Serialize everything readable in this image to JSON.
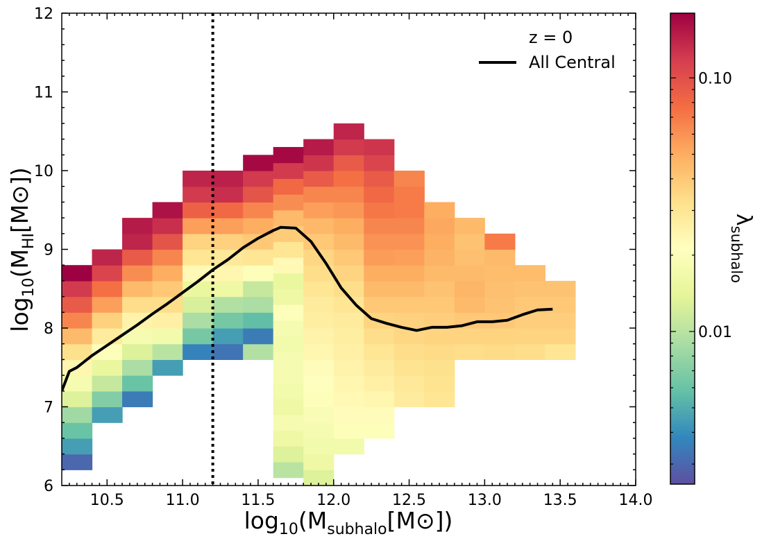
{
  "chart_data": {
    "type": "heatmap",
    "x_range": [
      10.2,
      14.0
    ],
    "y_range": [
      6.0,
      12.0
    ],
    "x_ticks": [
      "10.5",
      "11.0",
      "11.5",
      "12.0",
      "12.5",
      "13.0",
      "13.5",
      "14.0"
    ],
    "x_tick_values": [
      10.5,
      11.0,
      11.5,
      12.0,
      12.5,
      13.0,
      13.5,
      14.0
    ],
    "y_ticks": [
      "6",
      "7",
      "8",
      "9",
      "10",
      "11",
      "12"
    ],
    "y_tick_values": [
      6,
      7,
      8,
      9,
      10,
      11,
      12
    ],
    "xlabel": {
      "base": "log",
      "sub1": "10",
      "mid": "(M",
      "sub2": "subhalo",
      "end": "[M⊙])"
    },
    "ylabel": {
      "base": "log",
      "sub1": "10",
      "mid": "(M",
      "sub2": "HI",
      "end": "[M⊙])"
    },
    "legend": {
      "title": "z = 0",
      "line_label": "All Central",
      "placement": "top-right"
    },
    "colorbar": {
      "label_base": "λ",
      "label_sub": "subhalo",
      "scale": "log",
      "range": [
        0.0025,
        0.18
      ],
      "ticks": [
        "0.10",
        "0.01"
      ],
      "tick_values": [
        0.1,
        0.01
      ]
    },
    "cutoff_line": {
      "x": 11.2,
      "style": "dotted"
    },
    "grid": {
      "x_start": 10.2,
      "dx": 0.2,
      "y_start": 6.0,
      "dy": 0.2
    },
    "heatmap_columns": [
      {
        "x": 10.2,
        "y0": 6.2,
        "values": [
          0.003,
          0.0045,
          0.006,
          0.0085,
          0.013,
          0.018,
          0.024,
          0.032,
          0.045,
          0.065,
          0.09,
          0.12,
          0.18
        ]
      },
      {
        "x": 10.4,
        "y0": 6.8,
        "values": [
          0.0045,
          0.007,
          0.011,
          0.015,
          0.02,
          0.028,
          0.037,
          0.055,
          0.075,
          0.11,
          0.14
        ]
      },
      {
        "x": 10.6,
        "y0": 7.0,
        "values": [
          0.0035,
          0.006,
          0.009,
          0.013,
          0.018,
          0.025,
          0.033,
          0.045,
          0.062,
          0.09,
          0.14,
          0.15
        ]
      },
      {
        "x": 10.8,
        "y0": 7.4,
        "values": [
          0.0045,
          0.01,
          0.017,
          0.026,
          0.033,
          0.04,
          0.05,
          0.065,
          0.095,
          0.13,
          0.16
        ]
      },
      {
        "x": 11.0,
        "y0": 7.6,
        "values": [
          0.0037,
          0.0065,
          0.009,
          0.0125,
          0.015,
          0.023,
          0.03,
          0.036,
          0.055,
          0.085,
          0.12,
          0.14
        ]
      },
      {
        "x": 11.2,
        "y0": 7.6,
        "values": [
          0.0033,
          0.0045,
          0.0065,
          0.0095,
          0.016,
          0.024,
          0.029,
          0.037,
          0.055,
          0.08,
          0.13,
          0.145
        ]
      },
      {
        "x": 11.4,
        "y0": 7.6,
        "values": [
          0.0095,
          0.0035,
          0.0057,
          0.009,
          0.011,
          0.02,
          0.03,
          0.04,
          0.05,
          0.065,
          0.095,
          0.12,
          0.17
        ]
      },
      {
        "x": 11.6,
        "y0": 6.1,
        "values": [
          0.01,
          0.013,
          0.016,
          0.018,
          0.016,
          0.017,
          0.018,
          0.018,
          0.017,
          0.018,
          0.02,
          0.016,
          0.015,
          0.023,
          0.03,
          0.039,
          0.045,
          0.062,
          0.08,
          0.12,
          0.17
        ]
      },
      {
        "x": 11.8,
        "y0": 6.0,
        "values": [
          0.013,
          0.016,
          0.017,
          0.018,
          0.019,
          0.02,
          0.021,
          0.022,
          0.024,
          0.025,
          0.027,
          0.028,
          0.03,
          0.033,
          0.035,
          0.04,
          0.046,
          0.055,
          0.065,
          0.09,
          0.125,
          0.15
        ]
      },
      {
        "x": 12.0,
        "y0": 6.4,
        "values": [
          0.017,
          0.02,
          0.022,
          0.023,
          0.024,
          0.025,
          0.026,
          0.027,
          0.028,
          0.03,
          0.033,
          0.036,
          0.04,
          0.045,
          0.05,
          0.058,
          0.065,
          0.075,
          0.09,
          0.12,
          0.14
        ]
      },
      {
        "x": 12.2,
        "y0": 6.6,
        "values": [
          0.02,
          0.022,
          0.024,
          0.026,
          0.028,
          0.03,
          0.033,
          0.036,
          0.04,
          0.045,
          0.05,
          0.056,
          0.06,
          0.065,
          0.072,
          0.08,
          0.09,
          0.11,
          0.125
        ]
      },
      {
        "x": 12.4,
        "y0": 7.0,
        "values": [
          0.028,
          0.029,
          0.031,
          0.033,
          0.035,
          0.037,
          0.04,
          0.045,
          0.05,
          0.055,
          0.06,
          0.065,
          0.07,
          0.07,
          0.065
        ]
      },
      {
        "x": 12.6,
        "y0": 7.0,
        "values": [
          0.03,
          0.031,
          0.032,
          0.034,
          0.036,
          0.038,
          0.04,
          0.042,
          0.045,
          0.048,
          0.05,
          0.052,
          0.05
        ]
      },
      {
        "x": 12.8,
        "y0": 7.6,
        "values": [
          0.033,
          0.036,
          0.04,
          0.045,
          0.047,
          0.045,
          0.043,
          0.042,
          0.045
        ]
      },
      {
        "x": 13.0,
        "y0": 7.6,
        "values": [
          0.034,
          0.036,
          0.04,
          0.042,
          0.043,
          0.044,
          0.045,
          0.07
        ]
      },
      {
        "x": 13.2,
        "y0": 7.6,
        "values": [
          0.033,
          0.036,
          0.038,
          0.04,
          0.042,
          0.044
        ]
      },
      {
        "x": 13.4,
        "y0": 7.6,
        "values": [
          0.03,
          0.036,
          0.038,
          0.04,
          0.042
        ]
      }
    ],
    "series": [
      {
        "name": "All Central",
        "x": [
          10.2,
          10.25,
          10.3,
          10.4,
          10.5,
          10.6,
          10.7,
          10.8,
          10.9,
          11.0,
          11.1,
          11.2,
          11.3,
          11.4,
          11.5,
          11.6,
          11.65,
          11.75,
          11.85,
          11.95,
          12.05,
          12.15,
          12.25,
          12.35,
          12.45,
          12.55,
          12.65,
          12.75,
          12.85,
          12.95,
          13.05,
          13.15,
          13.25,
          13.35,
          13.45
        ],
        "y": [
          7.2,
          7.45,
          7.5,
          7.65,
          7.78,
          7.91,
          8.04,
          8.18,
          8.31,
          8.45,
          8.59,
          8.74,
          8.87,
          9.02,
          9.14,
          9.24,
          9.28,
          9.27,
          9.1,
          8.82,
          8.51,
          8.29,
          8.12,
          8.06,
          8.01,
          7.97,
          8.01,
          8.01,
          8.03,
          8.08,
          8.08,
          8.1,
          8.17,
          8.23,
          8.24
        ]
      }
    ]
  }
}
